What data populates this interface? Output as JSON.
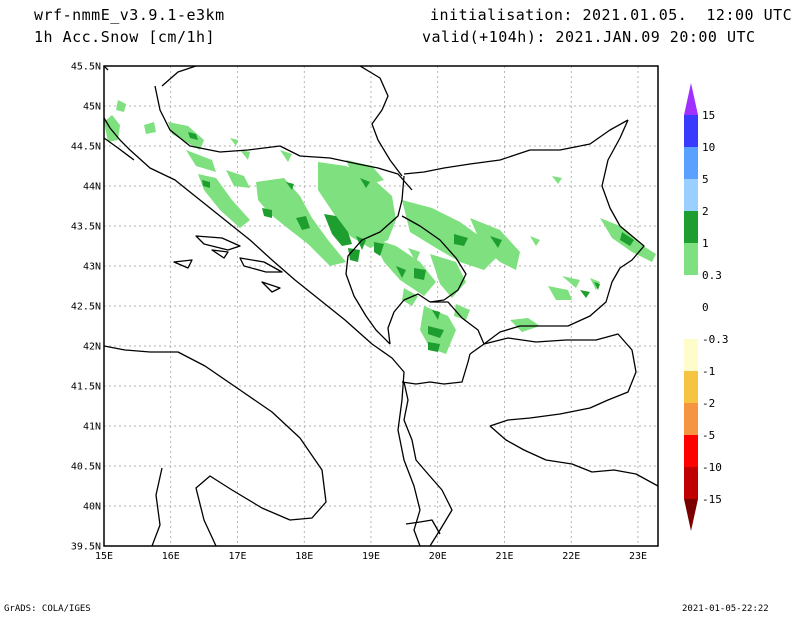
{
  "header": {
    "model": "wrf-nmmE_v3.9.1-e3km",
    "field": "1h Acc.Snow [cm/1h]",
    "init": "initialisation: 2021.01.05.  12:00 UTC",
    "valid": "valid(+104h): 2021.JAN.09 20:00 UTC"
  },
  "map": {
    "lat_labels": [
      "45.5N",
      "45N",
      "44.5N",
      "44N",
      "43.5N",
      "43N",
      "42.5N",
      "42N",
      "41.5N",
      "41N",
      "40.5N",
      "40N",
      "39.5N"
    ],
    "lon_labels": [
      "15E",
      "16E",
      "17E",
      "18E",
      "19E",
      "20E",
      "21E",
      "22E",
      "23E"
    ],
    "lon_range": [
      15,
      23.3
    ],
    "lat_range": [
      39.5,
      45.5
    ],
    "snow_light_color": "#7ee07e",
    "snow_mod_color": "#1e9e2e"
  },
  "colorbar": {
    "labels": [
      "15",
      "10",
      "5",
      "2",
      "1",
      "0.3",
      "0",
      "-0.3",
      "-1",
      "-2",
      "-5",
      "-10",
      "-15"
    ],
    "colors": [
      "#a030ff",
      "#3a3aff",
      "#5aa0ff",
      "#9ad0ff",
      "#1e9e2e",
      "#7ee07e",
      "#ffffff",
      "#ffffff",
      "#fffccc",
      "#f5c542",
      "#f59542",
      "#ff0000",
      "#c00000",
      "#7a0000"
    ]
  },
  "footer": {
    "left": "GrADS: COLA/IGES",
    "right": "2021-01-05-22:22"
  }
}
